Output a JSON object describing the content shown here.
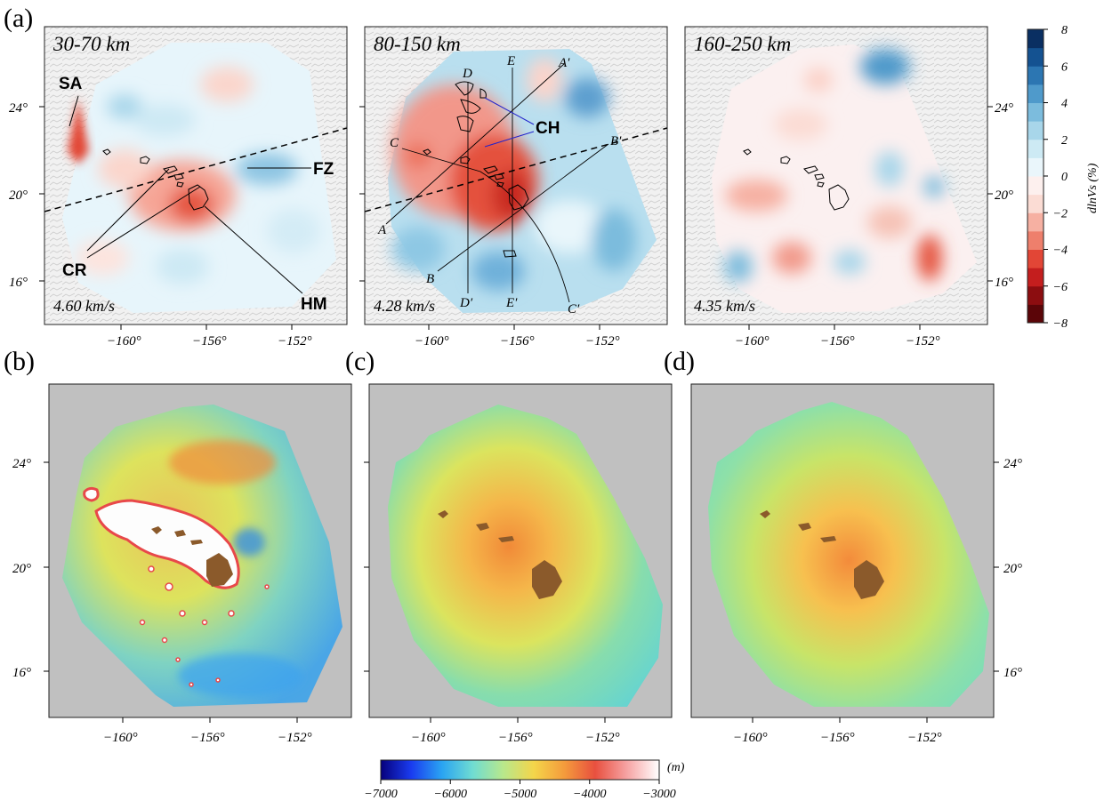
{
  "figure": {
    "panel_labels": [
      "(a)",
      "(b)",
      "(c)",
      "(d)"
    ]
  },
  "top_row": {
    "panels": [
      {
        "depth_label": "30-70 km",
        "velocity_label": "4.60 km/s"
      },
      {
        "depth_label": "80-150 km",
        "velocity_label": "4.28 km/s"
      },
      {
        "depth_label": "160-250 km",
        "velocity_label": "4.35 km/s"
      }
    ],
    "features": {
      "sa": "SA",
      "fz": "FZ",
      "cr": "CR",
      "hm": "HM",
      "ch": "CH"
    },
    "cross_sections": {
      "a": "A",
      "a_prime": "A′",
      "b": "B",
      "b_prime": "B′",
      "c": "C",
      "c_prime": "C′",
      "d": "D",
      "d_prime": "D′",
      "e": "E",
      "e_prime": "E′"
    },
    "lat_ticks": [
      "24°",
      "20°",
      "16°"
    ],
    "lon_ticks": [
      "−160°",
      "−156°",
      "−152°"
    ]
  },
  "bottom_row": {
    "lat_ticks": [
      "24°",
      "20°",
      "16°"
    ],
    "lon_ticks": [
      "−160°",
      "−156°",
      "−152°"
    ]
  },
  "colorbar_dvs": {
    "unit_label": "dlnVs (%)",
    "ticks": [
      "8",
      "6",
      "4",
      "2",
      "0",
      "−2",
      "−4",
      "−6",
      "−8"
    ],
    "range": [
      -8,
      8
    ],
    "colors": [
      "#5b0508",
      "#8c0d10",
      "#c41e1e",
      "#e24636",
      "#ee7f6c",
      "#f6b0a2",
      "#fbdcd4",
      "#fdf0ee",
      "#eaf6fb",
      "#cdeaf4",
      "#a8d6ea",
      "#7cbcdd",
      "#4f9acb",
      "#2c76b2",
      "#145291",
      "#0a2f62"
    ]
  },
  "colorbar_topo": {
    "unit_label": "(m)",
    "ticks": [
      "−7000",
      "−6000",
      "−5000",
      "−4000",
      "−3000"
    ],
    "range": [
      -7000,
      -3000
    ],
    "colors": [
      "#06007c",
      "#1a3cf0",
      "#2aa4f2",
      "#6fdcd2",
      "#b8e88c",
      "#f4d54a",
      "#f49b3c",
      "#e8503f",
      "#f6a0a0",
      "#ffffff"
    ]
  },
  "colors": {
    "land": "#8b5a2b",
    "no_data": "#c0c0c0"
  }
}
